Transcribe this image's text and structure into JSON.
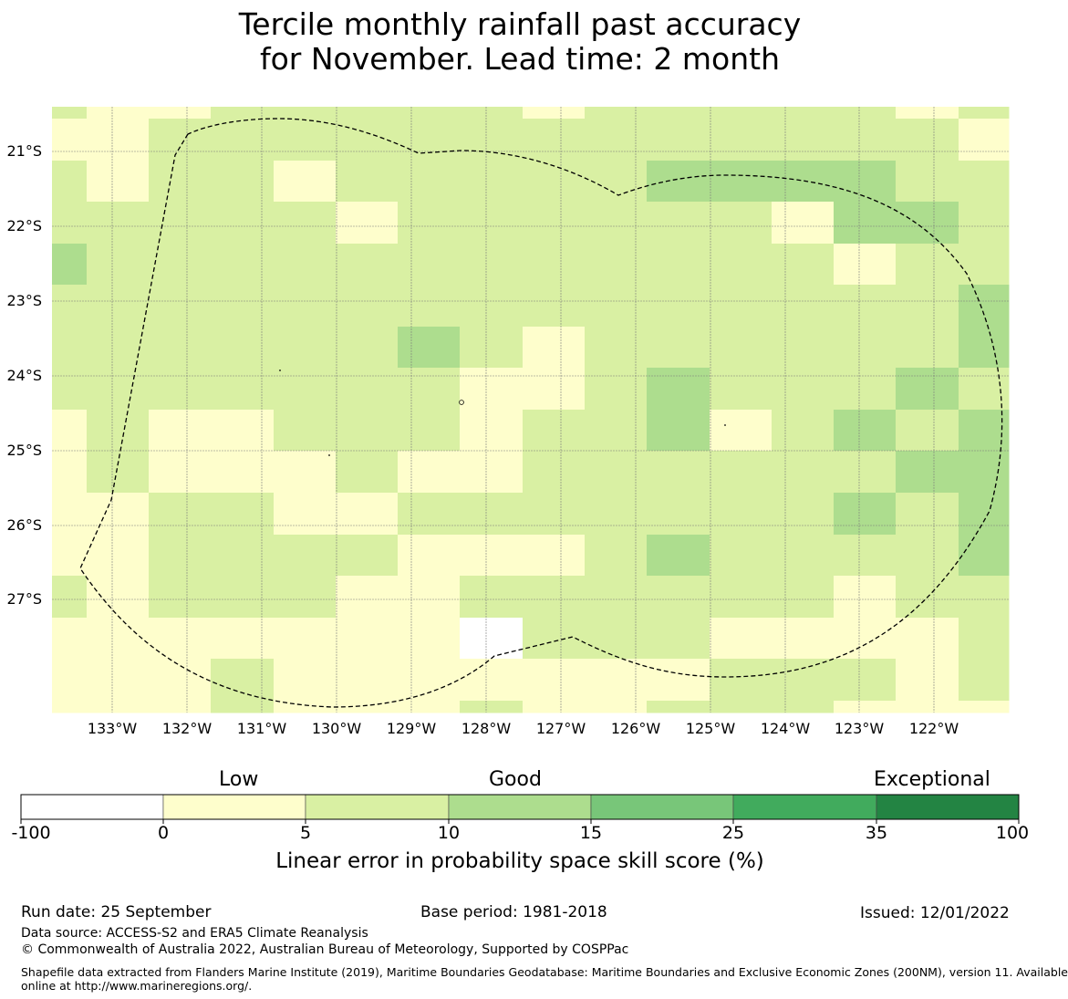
{
  "title": {
    "line1": "Tercile monthly rainfall past accuracy",
    "line2": "for November. Lead time: 2 month"
  },
  "map": {
    "lat_labels": [
      "21°S",
      "22°S",
      "23°S",
      "24°S",
      "25°S",
      "26°S",
      "27°S"
    ],
    "lon_labels": [
      "133°W",
      "132°W",
      "131°W",
      "130°W",
      "129°W",
      "128°W",
      "127°W",
      "126°W",
      "125°W",
      "124°W",
      "123°W",
      "122°W"
    ],
    "boundary": "EEZ boundary (dashed)",
    "grid_lines": true
  },
  "colorbar": {
    "categories": [
      "Low",
      "Good",
      "Exceptional"
    ],
    "ticks": [
      "-100",
      "0",
      "5",
      "10",
      "15",
      "25",
      "35",
      "100"
    ],
    "colors": [
      "#ffffff",
      "#fefecc",
      "#d9f0a3",
      "#addd8e",
      "#78c679",
      "#41ab5d",
      "#238443"
    ],
    "title": "Linear error in probability space skill score (%)"
  },
  "footer": {
    "run_date": "Run date: 25 September",
    "base_period": "Base period: 1981-2018",
    "issued": "Issued: 12/01/2022",
    "data_source": "Data source: ACCESS-S2 and ERA5 Climate Reanalysis",
    "copyright": "© Commonwealth of Australia 2022, Australian Bureau of Meteorology, Supported by COSPPac",
    "shapefile_line1": "Shapefile data extracted from Flanders Marine Institute (2019), Maritime Boundaries Geodatabase: Maritime Boundaries and Exclusive Economic Zones (200NM), version 11. Available",
    "shapefile_line2": "online at http://www.marineregions.org/."
  }
}
